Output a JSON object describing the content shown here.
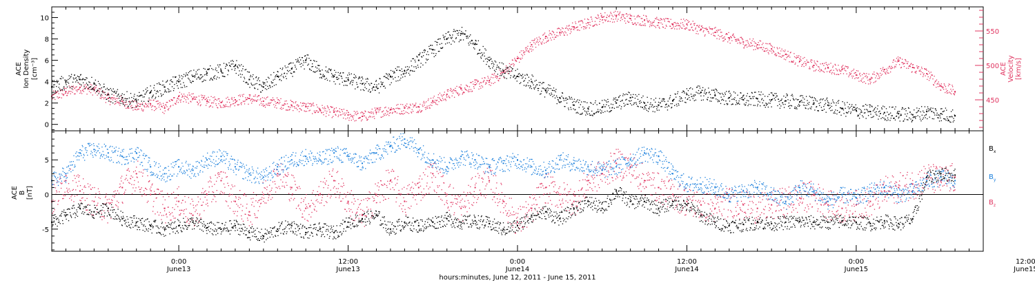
{
  "figure": {
    "xlabel": "hours:minutes, June 12, 2011 - June 15, 2011"
  },
  "colors": {
    "density": "#000000",
    "velocity": "#e0335f",
    "bx": "#000000",
    "by": "#1a7fdc",
    "bz": "#e0335f"
  },
  "chart_data": [
    {
      "type": "scatter",
      "panel": "top",
      "ylabel": [
        "ACE",
        "Ion Density",
        "[cm⁻³]"
      ],
      "ylabel_right": [
        "ACE",
        "Velocity",
        "[km/s]"
      ],
      "x_unit": "hours since 2011-06-12 00:00",
      "xlim": [
        15,
        81
      ],
      "ylim": [
        -0.6,
        11
      ],
      "yticks": [
        0,
        2,
        4,
        6,
        8,
        10
      ],
      "ylim_right": [
        405,
        585
      ],
      "yticks_right": [
        450,
        500,
        550
      ],
      "grid": false,
      "series": [
        {
          "name": "Ion Density",
          "axis": "left",
          "color": "#000000",
          "x": [
            15,
            16,
            17,
            18,
            19,
            20,
            21,
            22,
            23,
            24,
            25,
            26,
            27,
            28,
            29,
            30,
            31,
            32,
            33,
            34,
            35,
            36,
            37,
            38,
            39,
            40,
            41,
            42,
            43,
            44,
            45,
            46,
            47,
            48,
            49,
            50,
            51,
            52,
            53,
            54,
            55,
            56,
            57,
            58,
            59,
            60,
            61,
            62,
            63,
            64,
            65,
            66,
            67,
            68,
            69,
            70,
            71,
            72,
            73,
            74,
            75,
            76,
            77,
            78,
            79
          ],
          "y": [
            3.5,
            4.0,
            4.2,
            3.8,
            2.8,
            2.5,
            2.2,
            3.0,
            3.5,
            4.0,
            4.5,
            4.8,
            5.0,
            5.5,
            4.2,
            3.5,
            4.5,
            5.2,
            6.0,
            5.0,
            4.5,
            4.2,
            3.8,
            3.5,
            4.5,
            5.0,
            6.0,
            7.0,
            8.0,
            8.5,
            7.5,
            6.0,
            5.0,
            4.5,
            4.0,
            3.2,
            2.5,
            1.8,
            1.5,
            1.6,
            2.0,
            2.5,
            2.0,
            1.8,
            2.2,
            2.8,
            3.0,
            2.7,
            2.5,
            2.3,
            2.4,
            2.3,
            2.2,
            2.1,
            2.0,
            1.8,
            1.5,
            1.3,
            1.2,
            1.1,
            1.0,
            0.9,
            1.2,
            1.0,
            0.8
          ]
        },
        {
          "name": "Velocity",
          "axis": "right",
          "color": "#e0335f",
          "x": [
            15,
            16,
            17,
            18,
            19,
            20,
            21,
            22,
            23,
            24,
            25,
            26,
            27,
            28,
            29,
            30,
            31,
            32,
            33,
            34,
            35,
            36,
            37,
            38,
            39,
            40,
            41,
            42,
            43,
            44,
            45,
            46,
            47,
            48,
            49,
            50,
            51,
            52,
            53,
            54,
            55,
            56,
            57,
            58,
            59,
            60,
            61,
            62,
            63,
            64,
            65,
            66,
            67,
            68,
            69,
            70,
            71,
            72,
            73,
            74,
            75,
            76,
            77,
            78,
            79
          ],
          "y": [
            455,
            462,
            468,
            465,
            452,
            448,
            440,
            444,
            438,
            455,
            452,
            448,
            446,
            450,
            452,
            448,
            446,
            442,
            440,
            436,
            432,
            428,
            426,
            432,
            436,
            438,
            440,
            448,
            458,
            466,
            472,
            478,
            490,
            510,
            530,
            542,
            548,
            556,
            562,
            570,
            572,
            568,
            566,
            562,
            560,
            560,
            552,
            548,
            540,
            534,
            530,
            524,
            516,
            506,
            500,
            497,
            494,
            486,
            480,
            494,
            506,
            497,
            488,
            470,
            462
          ]
        }
      ]
    },
    {
      "type": "scatter",
      "panel": "bottom",
      "ylabel": [
        "ACE",
        "B",
        "[nT]"
      ],
      "x_unit": "hours since 2011-06-12 00:00",
      "xlim": [
        15,
        81
      ],
      "ylim": [
        -8.2,
        9.2
      ],
      "yticks": [
        -5,
        0,
        5
      ],
      "zero_line": true,
      "grid": false,
      "legend_position": "right",
      "series": [
        {
          "name": "B",
          "sub": "x",
          "color": "#000000",
          "x": [
            15,
            16,
            17,
            18,
            19,
            20,
            21,
            22,
            23,
            24,
            25,
            26,
            27,
            28,
            29,
            30,
            31,
            32,
            33,
            34,
            35,
            36,
            37,
            38,
            39,
            40,
            41,
            42,
            43,
            44,
            45,
            46,
            47,
            48,
            49,
            50,
            51,
            52,
            53,
            54,
            55,
            56,
            57,
            58,
            59,
            60,
            61,
            62,
            63,
            64,
            65,
            66,
            67,
            68,
            69,
            70,
            71,
            72,
            73,
            74,
            75,
            76,
            77,
            78,
            79
          ],
          "y": [
            -4.0,
            -3.0,
            -2.0,
            -2.5,
            -2.0,
            -3.5,
            -4.0,
            -4.5,
            -5.0,
            -4.5,
            -4.0,
            -4.8,
            -5.0,
            -4.5,
            -5.5,
            -6.0,
            -5.0,
            -4.5,
            -5.5,
            -5.0,
            -5.5,
            -4.0,
            -3.5,
            -3.0,
            -5.0,
            -4.0,
            -4.5,
            -4.0,
            -3.5,
            -4.0,
            -3.8,
            -4.2,
            -5.0,
            -4.5,
            -3.0,
            -2.5,
            -3.5,
            -2.0,
            -1.0,
            -2.0,
            0.5,
            -1.0,
            -1.0,
            -2.0,
            -1.0,
            -1.5,
            -3.0,
            -4.0,
            -4.5,
            -4.3,
            -4.0,
            -4.2,
            -4.0,
            -3.9,
            -4.0,
            -4.0,
            -3.8,
            -4.0,
            -4.2,
            -3.8,
            -4.2,
            -3.5,
            2.5,
            3.0,
            2.8
          ]
        },
        {
          "name": "B",
          "sub": "y",
          "color": "#1a7fdc",
          "x": [
            15,
            16,
            17,
            18,
            19,
            20,
            21,
            22,
            23,
            24,
            25,
            26,
            27,
            28,
            29,
            30,
            31,
            32,
            33,
            34,
            35,
            36,
            37,
            38,
            39,
            40,
            41,
            42,
            43,
            44,
            45,
            46,
            47,
            48,
            49,
            50,
            51,
            52,
            53,
            54,
            55,
            56,
            57,
            58,
            59,
            60,
            61,
            62,
            63,
            64,
            65,
            66,
            67,
            68,
            69,
            70,
            71,
            72,
            73,
            74,
            75,
            76,
            77,
            78,
            79
          ],
          "y": [
            2.0,
            3.0,
            6.0,
            6.5,
            6.0,
            5.5,
            6.0,
            4.0,
            3.0,
            4.0,
            3.5,
            5.0,
            5.5,
            4.0,
            3.0,
            2.5,
            4.0,
            5.0,
            5.5,
            5.0,
            6.0,
            5.5,
            4.5,
            6.0,
            7.0,
            8.0,
            6.5,
            5.0,
            4.0,
            5.5,
            5.0,
            4.0,
            4.5,
            5.0,
            4.0,
            3.5,
            5.0,
            4.5,
            4.0,
            3.5,
            4.0,
            5.0,
            6.0,
            5.5,
            3.0,
            1.5,
            1.5,
            1.0,
            0.0,
            0.5,
            1.0,
            0.0,
            -1.0,
            1.0,
            0.5,
            -1.0,
            0.0,
            -0.5,
            0.5,
            1.0,
            0.0,
            0.5,
            2.0,
            2.5,
            2.0
          ]
        },
        {
          "name": "B",
          "sub": "z",
          "color": "#e0335f",
          "x": [
            15,
            16,
            17,
            18,
            19,
            20,
            21,
            22,
            23,
            24,
            25,
            26,
            27,
            28,
            29,
            30,
            31,
            32,
            33,
            34,
            35,
            36,
            37,
            38,
            39,
            40,
            41,
            42,
            43,
            44,
            45,
            46,
            47,
            48,
            49,
            50,
            51,
            52,
            53,
            54,
            55,
            56,
            57,
            58,
            59,
            60,
            61,
            62,
            63,
            64,
            65,
            66,
            67,
            68,
            69,
            70,
            71,
            72,
            73,
            74,
            75,
            76,
            77,
            78,
            79
          ],
          "y": [
            -1.0,
            2.0,
            0.5,
            -1.0,
            -2.0,
            1.0,
            3.0,
            0.0,
            -2.0,
            -1.0,
            -3.0,
            0.0,
            2.0,
            -1.0,
            -2.5,
            0.0,
            3.0,
            1.0,
            -2.0,
            0.0,
            2.0,
            -1.0,
            -3.0,
            0.0,
            2.0,
            -1.0,
            1.0,
            3.0,
            0.0,
            -2.0,
            1.0,
            2.0,
            -1.0,
            -4.0,
            -2.0,
            1.0,
            0.0,
            -1.0,
            2.0,
            3.0,
            4.5,
            4.0,
            2.0,
            1.0,
            0.0,
            -1.0,
            -1.5,
            -2.0,
            -1.0,
            -1.5,
            -2.0,
            -1.5,
            -1.0,
            -0.5,
            0.0,
            -1.5,
            -2.0,
            -1.5,
            -1.0,
            0.5,
            1.0,
            1.5,
            2.5,
            2.0,
            2.5
          ]
        }
      ]
    }
  ],
  "xaxis": {
    "ticks": [
      {
        "x": 24,
        "line1": "0:00",
        "line2": "June13"
      },
      {
        "x": 36,
        "line1": "12:00",
        "line2": "June13"
      },
      {
        "x": 48,
        "line1": "0:00",
        "line2": "June14"
      },
      {
        "x": 60,
        "line1": "12:00",
        "line2": "June14"
      },
      {
        "x": 72,
        "line1": "0:00",
        "line2": "June15"
      },
      {
        "x": 84,
        "line1": "12:00",
        "line2": "June15"
      }
    ]
  }
}
